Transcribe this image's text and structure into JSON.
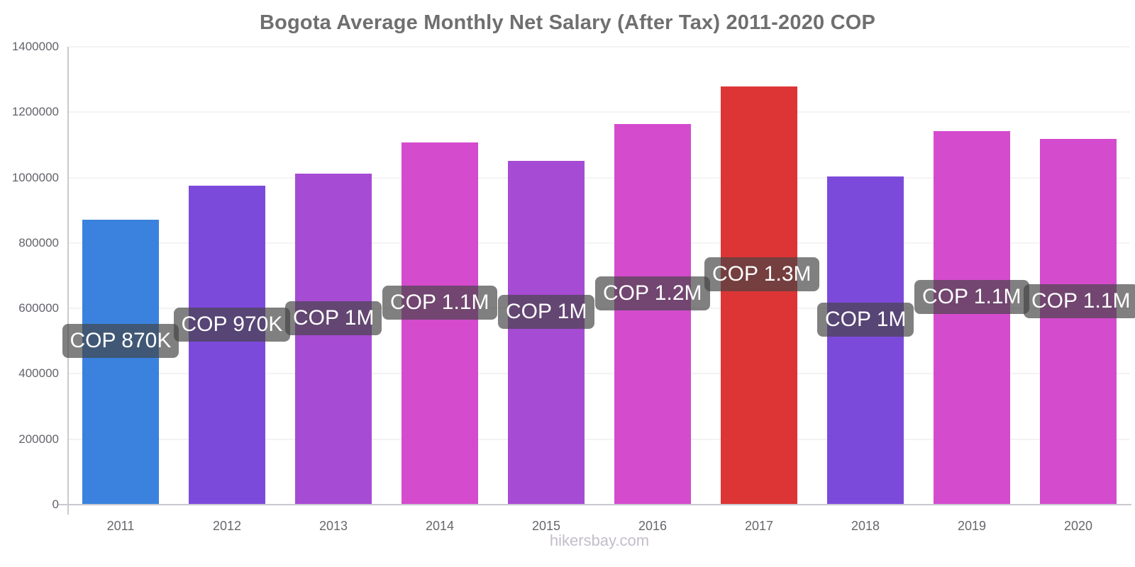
{
  "chart_data": {
    "type": "bar",
    "title": "Bogota Average Monthly Net Salary (After Tax) 2011-2020 COP",
    "categories": [
      "2011",
      "2012",
      "2013",
      "2014",
      "2015",
      "2016",
      "2017",
      "2018",
      "2019",
      "2020"
    ],
    "values": [
      870000,
      973000,
      1010000,
      1105000,
      1048000,
      1162000,
      1277000,
      1002000,
      1139000,
      1116000
    ],
    "bar_labels": [
      "COP 870K",
      "COP 970K",
      "COP 1M",
      "COP 1.1M",
      "COP 1M",
      "COP 1.2M",
      "COP 1.3M",
      "COP 1M",
      "COP 1.1M",
      "COP 1.1M"
    ],
    "bar_colors": [
      "#3a82dd",
      "#7c4adb",
      "#a64bd4",
      "#d44bcd",
      "#a64bd4",
      "#d44bcd",
      "#dd3535",
      "#7c4adb",
      "#d44bcd",
      "#d44bcd"
    ],
    "xlabel": "",
    "ylabel": "",
    "ylim": [
      0,
      1400000
    ],
    "y_ticks": [
      0,
      200000,
      400000,
      600000,
      800000,
      1000000,
      1200000,
      1400000
    ],
    "grid": "horizontal-faint",
    "legend": "none",
    "label_style": "dark-rounded-tooltip"
  },
  "colors": {
    "title_text": "#6f6f6f",
    "axis_line": "#c9c9d0",
    "gridline": "#f5f2f3",
    "tick_text": "#63636b",
    "label_bg": "rgba(68,68,68,0.68)",
    "label_text": "#ffffff",
    "watermark_text": "#c3bdcb"
  },
  "footer": {
    "watermark": "hikersbay.com"
  }
}
